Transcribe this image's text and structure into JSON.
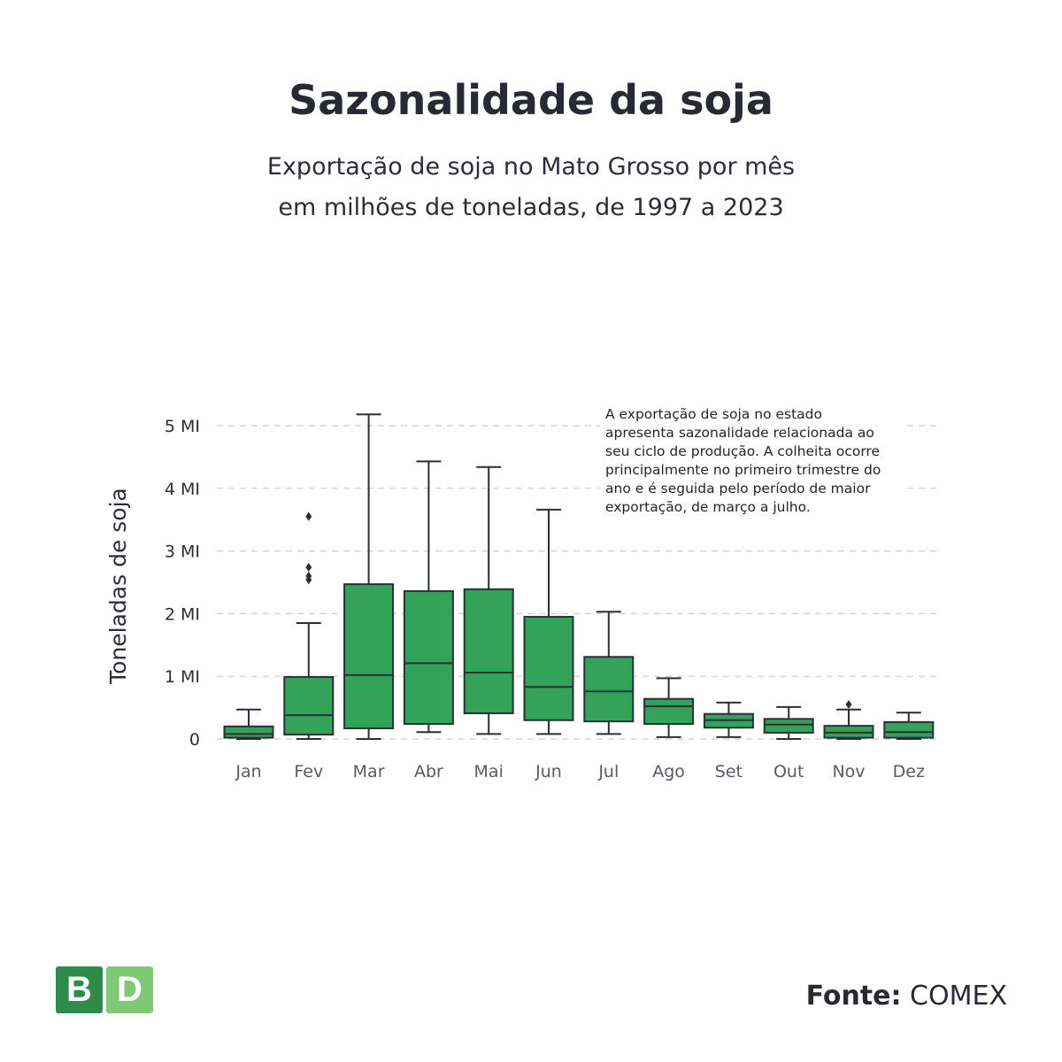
{
  "title": "Sazonalidade da soja",
  "subtitle": [
    "Exportação de soja no Mato Grosso por mês",
    "em milhões de toneladas, de 1997 a 2023"
  ],
  "source_label": "Fonte:",
  "source_value": "COMEX",
  "logo": {
    "letters": [
      "B",
      "D"
    ],
    "colors": [
      "#2e8b4a",
      "#7fc974"
    ]
  },
  "colors": {
    "box_fill": "#34a35a",
    "box_stroke": "#2b2f36",
    "grid": "#cccccc"
  },
  "chart_data": {
    "type": "boxplot",
    "title": "Sazonalidade da soja",
    "xlabel": "",
    "ylabel": "Toneladas de soja",
    "ylim": [
      0,
      5.3
    ],
    "yticks": [
      0,
      1,
      2,
      3,
      4,
      5
    ],
    "ytick_labels": [
      "0",
      "1 MI",
      "2 MI",
      "3 MI",
      "4 MI",
      "5 MI"
    ],
    "grid": true,
    "categories": [
      "Jan",
      "Fev",
      "Mar",
      "Abr",
      "Mai",
      "Jun",
      "Jul",
      "Ago",
      "Set",
      "Out",
      "Nov",
      "Dez"
    ],
    "boxes": [
      {
        "min": 0.0,
        "q1": 0.02,
        "median": 0.08,
        "q3": 0.2,
        "max": 0.47,
        "outliers": []
      },
      {
        "min": 0.0,
        "q1": 0.07,
        "median": 0.38,
        "q3": 0.99,
        "max": 1.85,
        "outliers": [
          3.55,
          2.74,
          2.6,
          2.54
        ]
      },
      {
        "min": 0.0,
        "q1": 0.17,
        "median": 1.02,
        "q3": 2.47,
        "max": 5.18,
        "outliers": []
      },
      {
        "min": 0.11,
        "q1": 0.24,
        "median": 1.21,
        "q3": 2.36,
        "max": 4.43,
        "outliers": []
      },
      {
        "min": 0.08,
        "q1": 0.41,
        "median": 1.06,
        "q3": 2.39,
        "max": 4.34,
        "outliers": []
      },
      {
        "min": 0.08,
        "q1": 0.3,
        "median": 0.83,
        "q3": 1.95,
        "max": 3.66,
        "outliers": []
      },
      {
        "min": 0.08,
        "q1": 0.28,
        "median": 0.76,
        "q3": 1.31,
        "max": 2.03,
        "outliers": []
      },
      {
        "min": 0.03,
        "q1": 0.24,
        "median": 0.52,
        "q3": 0.64,
        "max": 0.97,
        "outliers": []
      },
      {
        "min": 0.03,
        "q1": 0.18,
        "median": 0.3,
        "q3": 0.4,
        "max": 0.58,
        "outliers": []
      },
      {
        "min": 0.0,
        "q1": 0.1,
        "median": 0.23,
        "q3": 0.32,
        "max": 0.51,
        "outliers": []
      },
      {
        "min": 0.0,
        "q1": 0.02,
        "median": 0.1,
        "q3": 0.21,
        "max": 0.47,
        "outliers": [
          0.55
        ]
      },
      {
        "min": 0.0,
        "q1": 0.02,
        "median": 0.11,
        "q3": 0.27,
        "max": 0.42,
        "outliers": []
      }
    ],
    "annotation": [
      "A exportação de soja no estado",
      "apresenta sazonalidade relacionada ao",
      "seu ciclo de produção. A colheita ocorre",
      "principalmente no primeiro trimestre do",
      "ano e é seguida pelo período de maior",
      "exportação, de março a julho."
    ]
  }
}
